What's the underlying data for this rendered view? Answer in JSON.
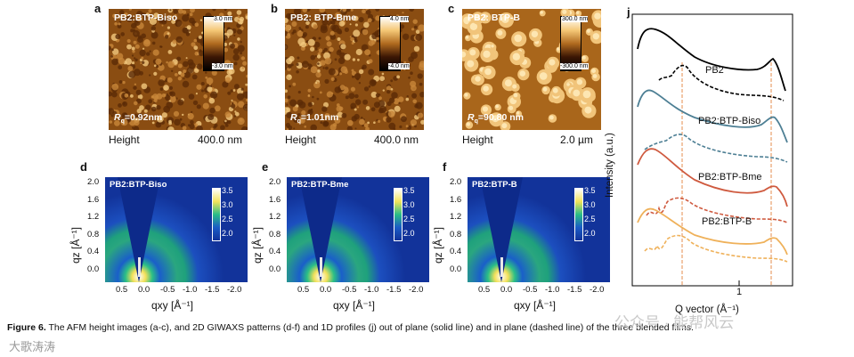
{
  "panels": {
    "afm": [
      {
        "letter": "a",
        "name": "PB2:BTP-Biso",
        "rq": "=0.92nm",
        "scale_top": "3.0 nm",
        "scale_bot": "-3.0 nm",
        "foot_left": "Height",
        "foot_right": "400.0 nm"
      },
      {
        "letter": "b",
        "name": "PB2: BTP-Bme",
        "rq": "=1.01nm",
        "scale_top": "4.0 nm",
        "scale_bot": "-4.0 nm",
        "foot_left": "Height",
        "foot_right": "400.0 nm"
      },
      {
        "letter": "c",
        "name": "PB2: BTP-B",
        "rq": "=90.80 nm",
        "scale_top": "300.0 nm",
        "scale_bot": "-300.0 nm",
        "foot_left": "Height",
        "foot_right": "2.0 µm"
      }
    ],
    "rq_symbol": "R",
    "rq_sub": "q",
    "giwaxs": [
      {
        "letter": "d",
        "name": "PB2:BTP-Biso"
      },
      {
        "letter": "e",
        "name": "PB2:BTP-Bme"
      },
      {
        "letter": "f",
        "name": "PB2:BTP-B"
      }
    ],
    "giwaxs_cbar_ticks": [
      "3.5",
      "3.0",
      "2.5",
      "2.0"
    ],
    "giwaxs_y_ticks": [
      "2.0",
      "1.6",
      "1.2",
      "0.8",
      "0.4",
      "0.0"
    ],
    "giwaxs_x_ticks": [
      "0.5",
      "0.0",
      "-0.5",
      "-1.0",
      "-1.5",
      "-2.0"
    ],
    "giwaxs_ylabel": "qz [Å⁻¹]",
    "giwaxs_xlabel": "qxy [Å⁻¹]",
    "profile": {
      "letter": "j",
      "ylabel": "Intensity (a.u.)",
      "xlabel": "Q vector (Å⁻¹)",
      "xtick": "1",
      "labels": [
        "PB2",
        "PB2:BTP-Biso",
        "PB2:BTP-Bme",
        "PB2:BTP-B"
      ],
      "colors": [
        "#000000",
        "#4d7f94",
        "#cf5a3f",
        "#efb15a"
      ]
    }
  },
  "caption": {
    "bold": "Figure 6.",
    "text": " The AFM height images (a-c), and 2D GIWAXS patterns (d-f) and 1D profiles (j) out of plane (solid line) and in plane (dashed line) of the three blended films."
  },
  "watermarks": {
    "wechat": "公众号 · 能帮风云",
    "bottom": "大歌涛涛"
  }
}
